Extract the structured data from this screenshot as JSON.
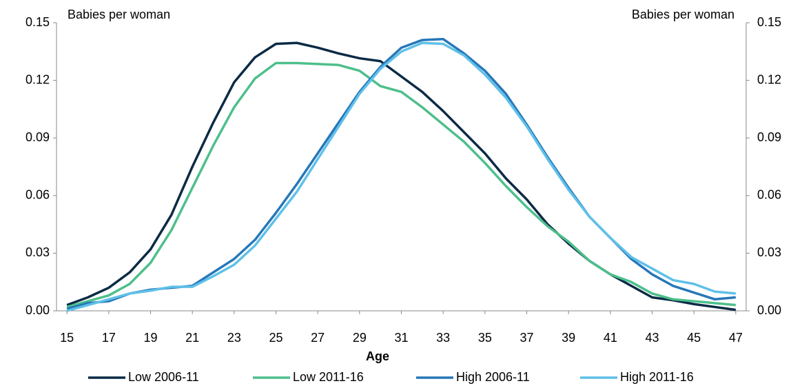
{
  "chart_data": {
    "type": "line",
    "x_label": "Age",
    "y_label": "Babies per woman",
    "y2_label": "Babies per woman",
    "x": [
      15,
      16,
      17,
      18,
      19,
      20,
      21,
      22,
      23,
      24,
      25,
      26,
      27,
      28,
      29,
      30,
      31,
      32,
      33,
      34,
      35,
      36,
      37,
      38,
      39,
      40,
      41,
      42,
      43,
      44,
      45,
      46,
      47
    ],
    "xlim": [
      14.5,
      47.5
    ],
    "xticks": [
      15,
      17,
      19,
      21,
      23,
      25,
      27,
      29,
      31,
      33,
      35,
      37,
      39,
      41,
      43,
      45,
      47
    ],
    "ylim": [
      0,
      0.15
    ],
    "yticks": [
      {
        "value": 0,
        "label": "0.00"
      },
      0.03,
      0.06,
      0.09,
      0.12,
      0.15
    ],
    "y2lim": [
      0,
      0.15
    ],
    "y2ticks": [
      {
        "value": 0,
        "label": "0.00"
      },
      0.03,
      0.06,
      0.09,
      0.12,
      0.15
    ],
    "legend": "bottom",
    "series": [
      {
        "name": "Low 2006-11",
        "color": "#0b2a45",
        "values": [
          0.003,
          0.007,
          0.012,
          0.02,
          0.032,
          0.05,
          0.075,
          0.098,
          0.119,
          0.132,
          0.139,
          0.1395,
          0.137,
          0.134,
          0.1315,
          0.13,
          0.122,
          0.114,
          0.104,
          0.093,
          0.082,
          0.069,
          0.058,
          0.045,
          0.035,
          0.026,
          0.019,
          0.013,
          0.007,
          0.0055,
          0.0035,
          0.002,
          0.0005
        ]
      },
      {
        "name": "Low 2011-16",
        "color": "#4dbf8b",
        "values": [
          0.002,
          0.005,
          0.008,
          0.014,
          0.025,
          0.042,
          0.064,
          0.086,
          0.106,
          0.121,
          0.129,
          0.129,
          0.1285,
          0.128,
          0.125,
          0.117,
          0.114,
          0.106,
          0.097,
          0.088,
          0.077,
          0.065,
          0.054,
          0.044,
          0.036,
          0.026,
          0.019,
          0.015,
          0.009,
          0.006,
          0.005,
          0.004,
          0.003
        ]
      },
      {
        "name": "High 2006-11",
        "color": "#2777b8",
        "values": [
          0.001,
          0.004,
          0.005,
          0.009,
          0.011,
          0.012,
          0.013,
          0.02,
          0.027,
          0.037,
          0.051,
          0.066,
          0.082,
          0.098,
          0.114,
          0.127,
          0.137,
          0.141,
          0.1415,
          0.134,
          0.125,
          0.113,
          0.097,
          0.08,
          0.064,
          0.049,
          0.038,
          0.027,
          0.019,
          0.013,
          0.0095,
          0.006,
          0.007
        ]
      },
      {
        "name": "High 2011-16",
        "color": "#5fc0e8",
        "values": [
          0.0,
          0.003,
          0.006,
          0.009,
          0.0105,
          0.0125,
          0.0125,
          0.018,
          0.024,
          0.034,
          0.048,
          0.062,
          0.079,
          0.096,
          0.113,
          0.126,
          0.135,
          0.1395,
          0.139,
          0.133,
          0.123,
          0.111,
          0.096,
          0.079,
          0.063,
          0.049,
          0.038,
          0.028,
          0.022,
          0.016,
          0.014,
          0.01,
          0.009
        ]
      }
    ]
  }
}
